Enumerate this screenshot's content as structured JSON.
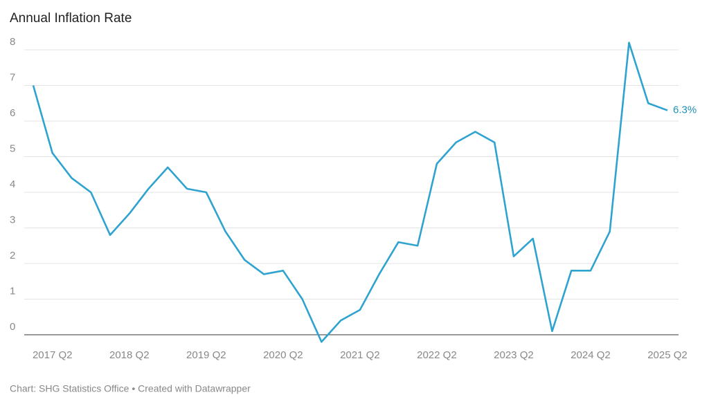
{
  "chart_data": {
    "type": "line",
    "title": "Annual Inflation Rate",
    "source": "Chart: SHG Statistics Office • Created with Datawrapper",
    "categories": [
      null,
      "2017 Q2",
      null,
      null,
      null,
      "2018 Q2",
      null,
      null,
      null,
      "2019 Q2",
      null,
      null,
      null,
      "2020 Q2",
      null,
      null,
      null,
      "2021 Q2",
      null,
      null,
      null,
      "2022 Q2",
      null,
      null,
      null,
      "2023 Q2",
      null,
      null,
      null,
      "2024 Q2",
      null,
      null,
      null,
      "2025 Q2"
    ],
    "values": [
      7.0,
      5.1,
      4.4,
      4.0,
      2.8,
      3.4,
      4.1,
      4.7,
      4.1,
      4.0,
      2.9,
      2.1,
      1.7,
      1.8,
      1.0,
      -0.2,
      0.4,
      0.7,
      1.7,
      2.6,
      2.5,
      4.8,
      5.4,
      5.7,
      5.4,
      2.2,
      2.7,
      0.1,
      1.8,
      1.8,
      2.9,
      8.2,
      6.5,
      6.3
    ],
    "value_labels": [
      null,
      null,
      null,
      null,
      null,
      null,
      null,
      null,
      null,
      null,
      null,
      null,
      null,
      null,
      null,
      null,
      null,
      null,
      null,
      null,
      null,
      null,
      null,
      null,
      null,
      null,
      null,
      null,
      null,
      null,
      null,
      null,
      null,
      "6.3%"
    ],
    "color": "#2ea3d0",
    "ylim": [
      0,
      8
    ],
    "yticks": [
      0,
      1,
      2,
      3,
      4,
      5,
      6,
      7,
      8
    ],
    "grid": true
  }
}
